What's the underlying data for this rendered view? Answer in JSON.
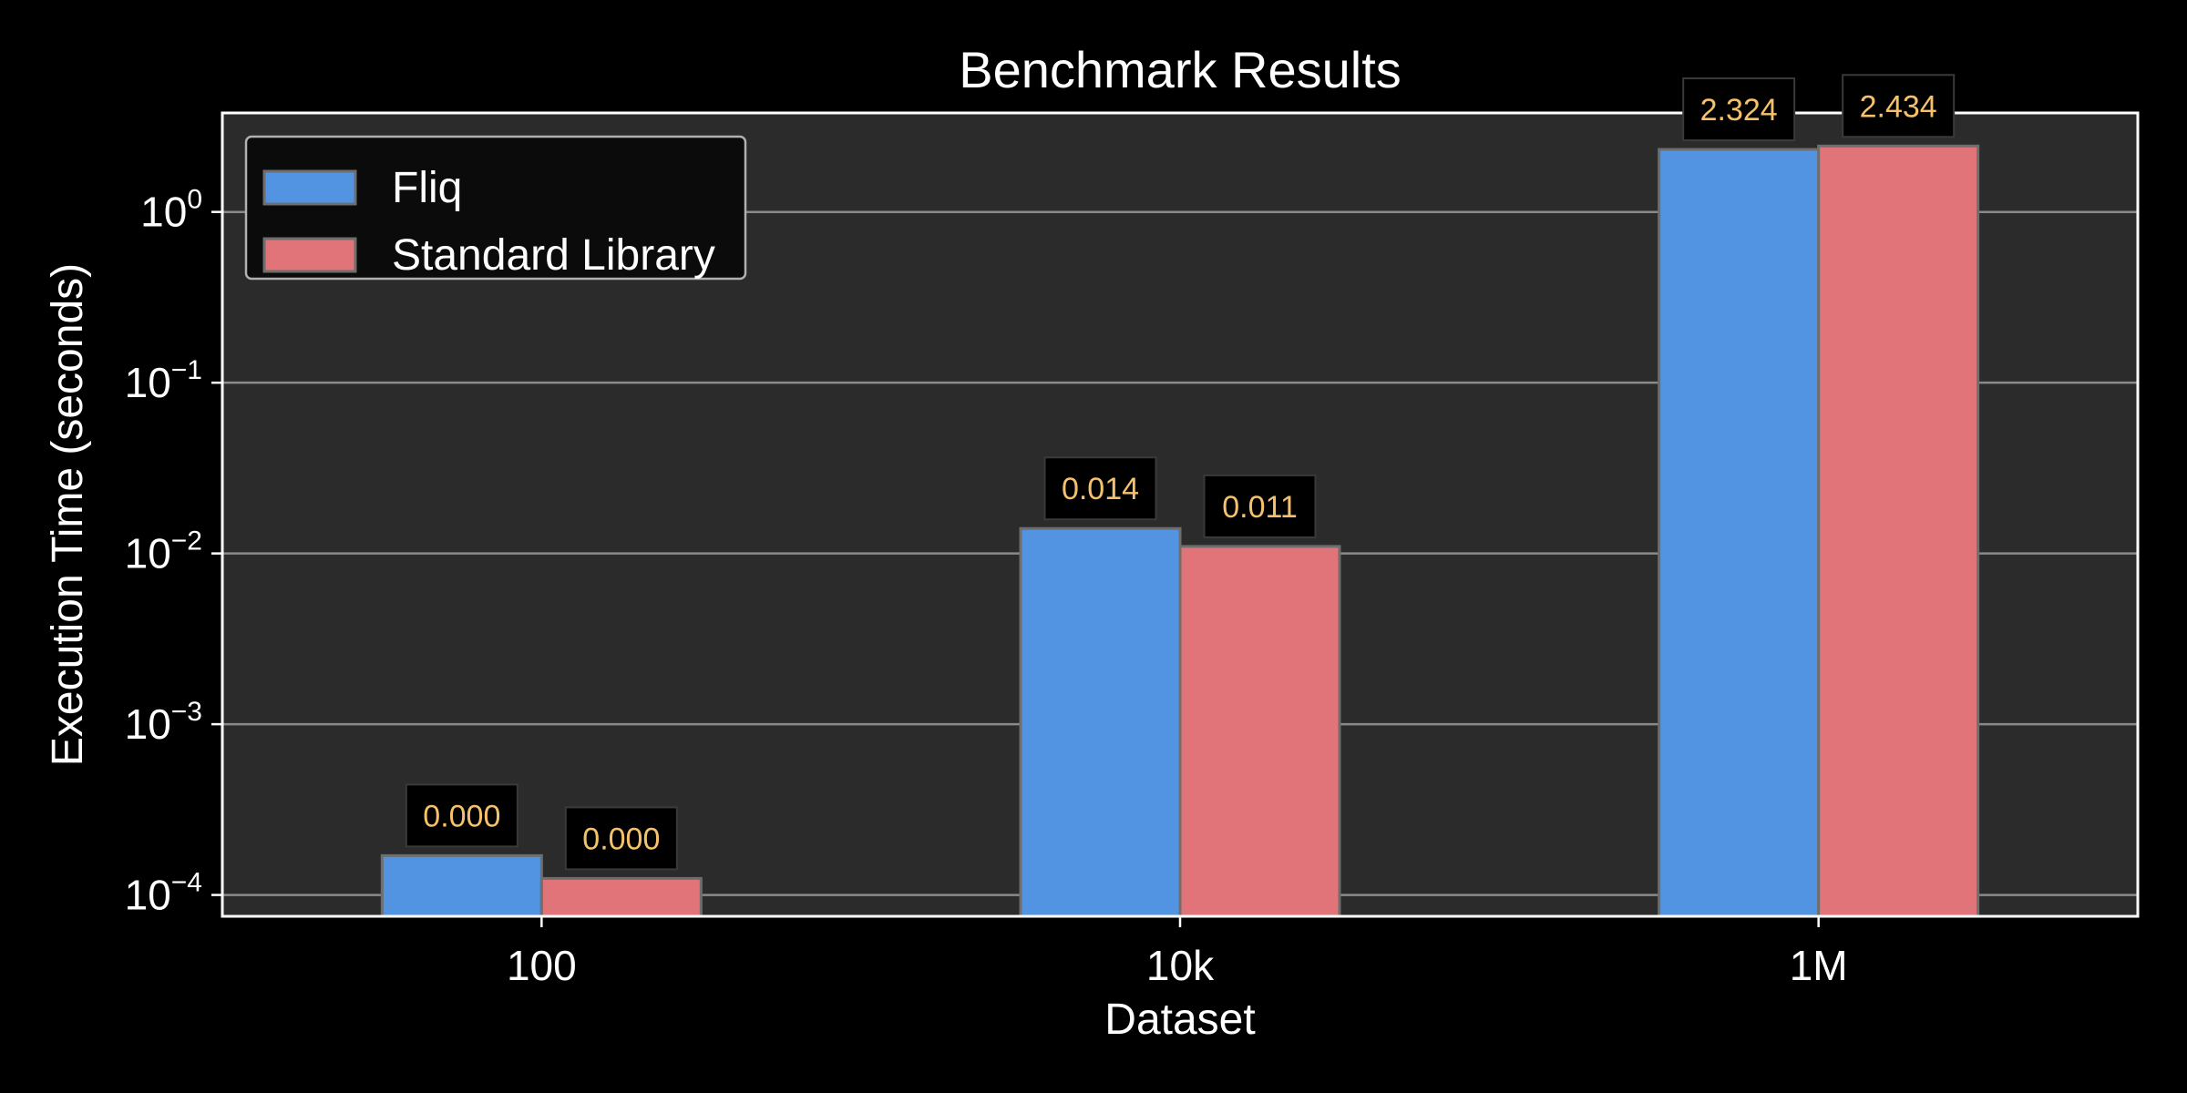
{
  "chart_data": {
    "type": "bar",
    "title": "Benchmark Results",
    "xlabel": "Dataset",
    "ylabel": "Execution Time (seconds)",
    "yscale": "log",
    "ylim": [
      7.5e-05,
      3.8
    ],
    "yticks": [
      {
        "value": 0.0001,
        "base": "10",
        "exp": "−4"
      },
      {
        "value": 0.001,
        "base": "10",
        "exp": "−3"
      },
      {
        "value": 0.01,
        "base": "10",
        "exp": "−2"
      },
      {
        "value": 0.1,
        "base": "10",
        "exp": "−1"
      },
      {
        "value": 1,
        "base": "10",
        "exp": "0"
      }
    ],
    "categories": [
      "100",
      "10k",
      "1M"
    ],
    "series": [
      {
        "name": "Fliq",
        "color": "#5294e2",
        "values": [
          0.00017,
          0.014,
          2.324
        ],
        "labels": [
          "0.000",
          "0.014",
          "2.324"
        ]
      },
      {
        "name": "Standard Library",
        "color": "#e07478",
        "values": [
          0.000125,
          0.011,
          2.434
        ],
        "labels": [
          "0.000",
          "0.011",
          "2.434"
        ]
      }
    ],
    "grid": true,
    "legend": "top-left",
    "colors": {
      "background": "#000000",
      "plot_background": "#2b2b2b",
      "grid": "#8a8a8a",
      "axes": "#ffffff",
      "data_label_text": "#f5c26b",
      "data_label_box": "#000000"
    }
  }
}
